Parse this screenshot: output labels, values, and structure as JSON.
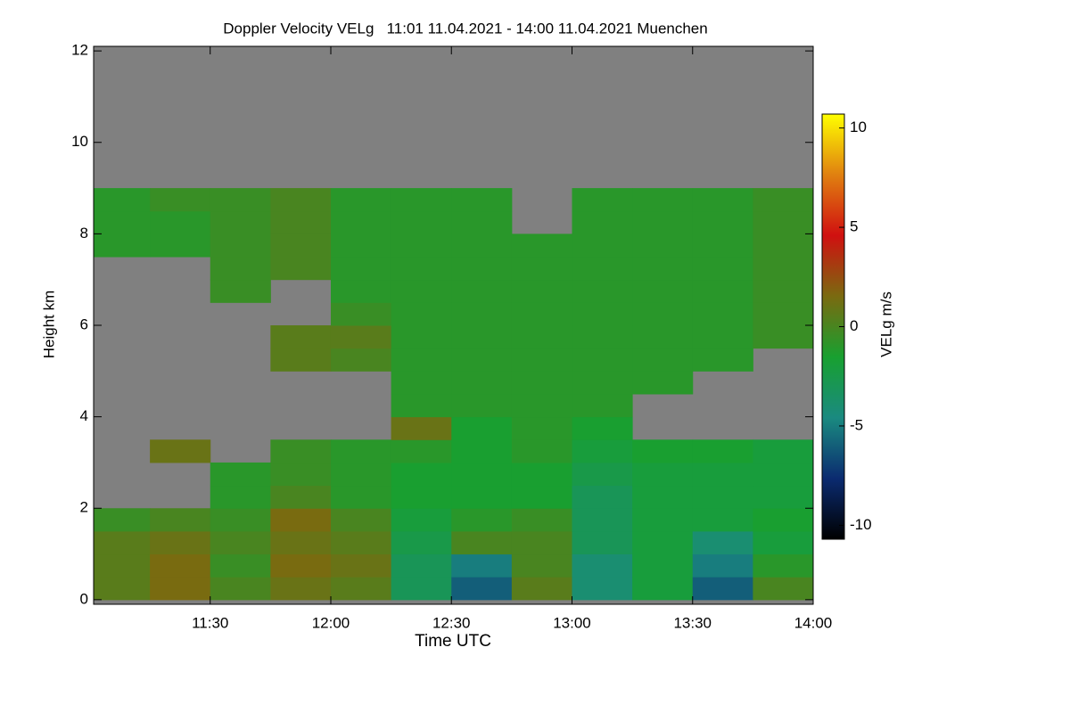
{
  "chart_data": {
    "type": "heatmap",
    "title": "Doppler Velocity VELg   11:01 11.04.2021 - 14:00 11.04.2021 Muenchen",
    "xlabel": "Time UTC",
    "ylabel": "Height km",
    "colorbar_label": "VELg m/s",
    "x": [
      11.125,
      11.375,
      11.625,
      11.875,
      12.125,
      12.375,
      12.625,
      12.875,
      13.125,
      13.375,
      13.625,
      13.875
    ],
    "y": [
      0.25,
      0.75,
      1.25,
      1.75,
      2.25,
      2.75,
      3.25,
      3.75,
      4.25,
      4.75,
      5.25,
      5.75,
      6.25,
      6.75,
      7.25,
      7.75,
      8.25,
      8.75,
      9.25,
      9.75,
      10.25,
      10.75,
      11.25,
      11.75
    ],
    "z": [
      [
        0.5,
        0.5,
        0.5,
        -0.5,
        null,
        null,
        null,
        null,
        null,
        null,
        null,
        null,
        null,
        null,
        null,
        -1,
        -1,
        -1,
        null,
        null,
        null,
        null,
        null,
        null
      ],
      [
        1.5,
        1.5,
        1,
        0,
        null,
        null,
        1,
        null,
        null,
        null,
        null,
        null,
        null,
        null,
        null,
        -1,
        -1,
        -0.5,
        null,
        null,
        null,
        null,
        null,
        null
      ],
      [
        0,
        -0.5,
        0,
        -0.5,
        -1,
        -1,
        null,
        null,
        null,
        null,
        null,
        null,
        null,
        -0.5,
        -0.5,
        -0.5,
        -0.5,
        -0.5,
        null,
        null,
        null,
        null,
        null,
        null
      ],
      [
        1,
        1.5,
        1,
        1.5,
        0,
        -0.5,
        -0.5,
        null,
        null,
        null,
        0.5,
        0.5,
        null,
        null,
        0,
        0,
        0,
        0,
        null,
        null,
        null,
        null,
        null,
        null
      ],
      [
        0.5,
        1,
        0.5,
        0,
        -1,
        -1,
        -1,
        null,
        null,
        null,
        0,
        0.5,
        -0.5,
        -1,
        -1,
        -1,
        -1,
        -1,
        null,
        null,
        null,
        null,
        null,
        null
      ],
      [
        -3,
        -3,
        -2.5,
        -2,
        -1.5,
        -1.5,
        -1,
        1,
        -1,
        -1,
        -1,
        -1,
        -1,
        -1,
        -1,
        -1,
        -1,
        -1,
        null,
        null,
        null,
        null,
        null,
        null
      ],
      [
        -6,
        -5,
        0,
        -1,
        -1.5,
        -1.5,
        -1.5,
        -1.5,
        -1,
        -1,
        -1,
        -1,
        -1,
        -1,
        -1,
        -1,
        -1,
        -1,
        null,
        null,
        null,
        null,
        null,
        null
      ],
      [
        0.5,
        0,
        0,
        -0.5,
        -1.5,
        -1.5,
        -1,
        -1,
        -1,
        -1,
        -1,
        -1,
        -1,
        -1,
        -1,
        -1,
        null,
        null,
        null,
        null,
        null,
        null,
        null,
        null
      ],
      [
        -4,
        -4,
        -3,
        -3,
        -3,
        -2.5,
        -2,
        -1.5,
        -1,
        -1,
        -1,
        -1,
        -1,
        -1,
        -1,
        -1,
        -1,
        -1,
        null,
        null,
        null,
        null,
        null,
        null
      ],
      [
        -2,
        -2,
        -2,
        -2,
        -2,
        -2,
        -1.5,
        null,
        null,
        -1,
        -1,
        -1,
        -1,
        -1,
        -1,
        -1,
        -1,
        -1,
        null,
        null,
        null,
        null,
        null,
        null
      ],
      [
        -6,
        -5,
        -4,
        -2,
        -2,
        -2,
        -1.5,
        null,
        null,
        null,
        -1,
        -1,
        -1,
        -1,
        -1,
        -1,
        -1,
        -1,
        null,
        null,
        null,
        null,
        null,
        null
      ],
      [
        0,
        -1,
        -2,
        -1.5,
        -2,
        -2,
        -2,
        null,
        null,
        null,
        null,
        -0.5,
        -0.5,
        -0.5,
        -0.5,
        -0.5,
        -0.5,
        -0.5,
        null,
        null,
        null,
        null,
        null,
        null
      ]
    ],
    "xlim": [
      11.0167,
      14.0
    ],
    "xticks": [
      {
        "value": 11.5,
        "label": "11:30"
      },
      {
        "value": 12,
        "label": "12:00"
      },
      {
        "value": 12.5,
        "label": "12:30"
      },
      {
        "value": 13,
        "label": "13:00"
      },
      {
        "value": 13.5,
        "label": "13:30"
      },
      {
        "value": 14,
        "label": "14:00"
      }
    ],
    "ylim": [
      -0.1,
      12.1
    ],
    "yticks": [
      0,
      2,
      4,
      6,
      8,
      10,
      12
    ],
    "clim": [
      -10.7,
      10.7
    ],
    "cticks": [
      -10,
      -5,
      0,
      5,
      10
    ],
    "colormap": [
      "#000000",
      "#0b2b70",
      "#1a8a80",
      "#18a030",
      "#7a6a10",
      "#d01010",
      "#e08010",
      "#ffff00"
    ],
    "nan_color": "#808080"
  }
}
